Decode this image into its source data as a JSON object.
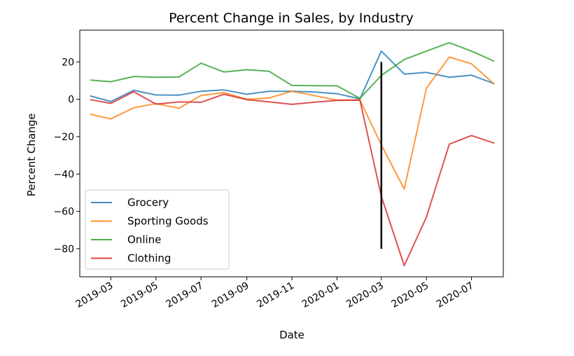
{
  "chart_data": {
    "type": "line",
    "title": "Percent Change in Sales, by Industry",
    "xlabel": "Date",
    "ylabel": "Percent Change",
    "x": [
      "2019-02-01",
      "2019-03-01",
      "2019-04-01",
      "2019-05-01",
      "2019-06-01",
      "2019-07-01",
      "2019-08-01",
      "2019-09-01",
      "2019-10-01",
      "2019-11-01",
      "2019-12-01",
      "2020-01-01",
      "2020-02-01",
      "2020-03-01",
      "2020-04-01",
      "2020-05-01",
      "2020-06-01",
      "2020-07-01",
      "2020-08-01"
    ],
    "xlim": [
      "2019-01-18",
      "2020-08-13"
    ],
    "ylim": [
      -95,
      37
    ],
    "x_ticks": [
      "2019-03",
      "2019-05",
      "2019-07",
      "2019-09",
      "2019-11",
      "2020-01",
      "2020-03",
      "2020-05",
      "2020-07"
    ],
    "y_ticks": [
      20,
      0,
      -20,
      -40,
      -60,
      -80
    ],
    "grid": false,
    "legend_position": "lower-left",
    "series": [
      {
        "name": "Grocery",
        "color": "#1f77b4",
        "values": [
          1.8,
          -1.2,
          4.8,
          2.3,
          2.2,
          4.3,
          5.0,
          2.7,
          4.3,
          4.3,
          3.9,
          3.0,
          0.2,
          25.8,
          13.5,
          14.4,
          11.8,
          12.9,
          8.3
        ]
      },
      {
        "name": "Sporting Goods",
        "color": "#ff7f0e",
        "values": [
          -8.0,
          -10.5,
          -4.5,
          -2.3,
          -4.8,
          2.0,
          3.6,
          0.0,
          0.7,
          4.3,
          2.0,
          -0.5,
          -0.3,
          -24.5,
          -48.0,
          6.0,
          22.6,
          19.0,
          8.0
        ]
      },
      {
        "name": "Online",
        "color": "#2ca02c",
        "values": [
          10.3,
          9.4,
          12.2,
          11.8,
          11.9,
          19.3,
          14.6,
          15.8,
          15.0,
          7.4,
          7.3,
          7.2,
          0.5,
          12.8,
          21.3,
          25.8,
          30.3,
          25.8,
          20.3
        ]
      },
      {
        "name": "Clothing",
        "color": "#d62728",
        "values": [
          -0.2,
          -2.2,
          4.0,
          -2.6,
          -1.4,
          -1.6,
          2.7,
          -0.2,
          -1.4,
          -2.7,
          -1.6,
          -0.6,
          -0.5,
          -52.0,
          -89.0,
          -63.0,
          -24.0,
          -19.4,
          -23.5
        ]
      }
    ],
    "annotations": [
      {
        "type": "vertical-line",
        "x": "2020-03-01",
        "y_range": [
          -80,
          20
        ],
        "color": "#000000"
      }
    ]
  }
}
